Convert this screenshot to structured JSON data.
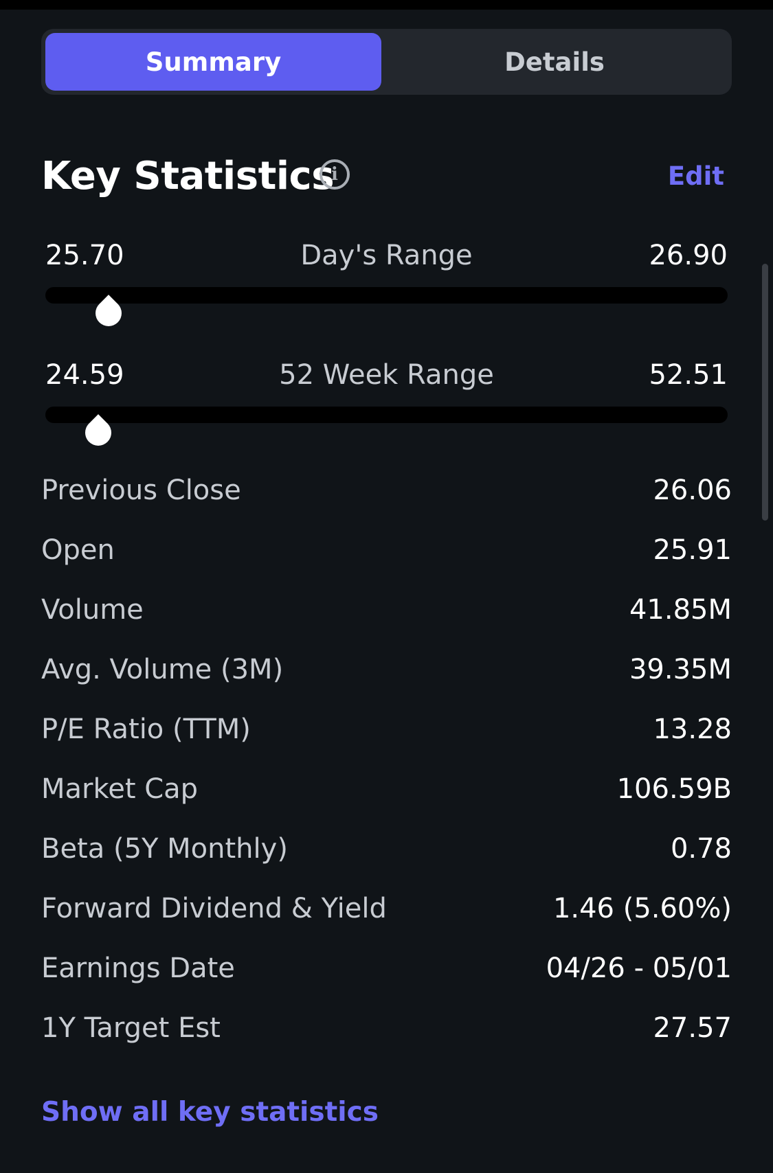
{
  "tabs": {
    "summary_label": "Summary",
    "details_label": "Details"
  },
  "section": {
    "title": "Key Statistics",
    "info_icon": "info-icon",
    "edit_label": "Edit"
  },
  "ranges": {
    "days_range": {
      "label": "Day's Range",
      "low": "25.70",
      "high": "26.90",
      "marker_position_fraction": 0.05
    },
    "week52_range": {
      "label": "52 Week Range",
      "low": "24.59",
      "high": "52.51",
      "marker_position_fraction": 0.035
    }
  },
  "stats": [
    {
      "label": "Previous Close",
      "value": "26.06"
    },
    {
      "label": "Open",
      "value": "25.91"
    },
    {
      "label": "Volume",
      "value": "41.85M"
    },
    {
      "label": "Avg. Volume (3M)",
      "value": "39.35M"
    },
    {
      "label": "P/E Ratio (TTM)",
      "value": "13.28"
    },
    {
      "label": "Market Cap",
      "value": "106.59B"
    },
    {
      "label": "Beta (5Y Monthly)",
      "value": "0.78"
    },
    {
      "label": "Forward Dividend & Yield",
      "value": "1.46 (5.60%)"
    },
    {
      "label": "Earnings Date",
      "value": "04/26 - 05/01"
    },
    {
      "label": "1Y Target Est",
      "value": "27.57"
    }
  ],
  "footer": {
    "show_all_label": "Show all key statistics"
  },
  "colors": {
    "background": "#101418",
    "accent": "#5e5df0",
    "link": "#6f6ef5"
  }
}
